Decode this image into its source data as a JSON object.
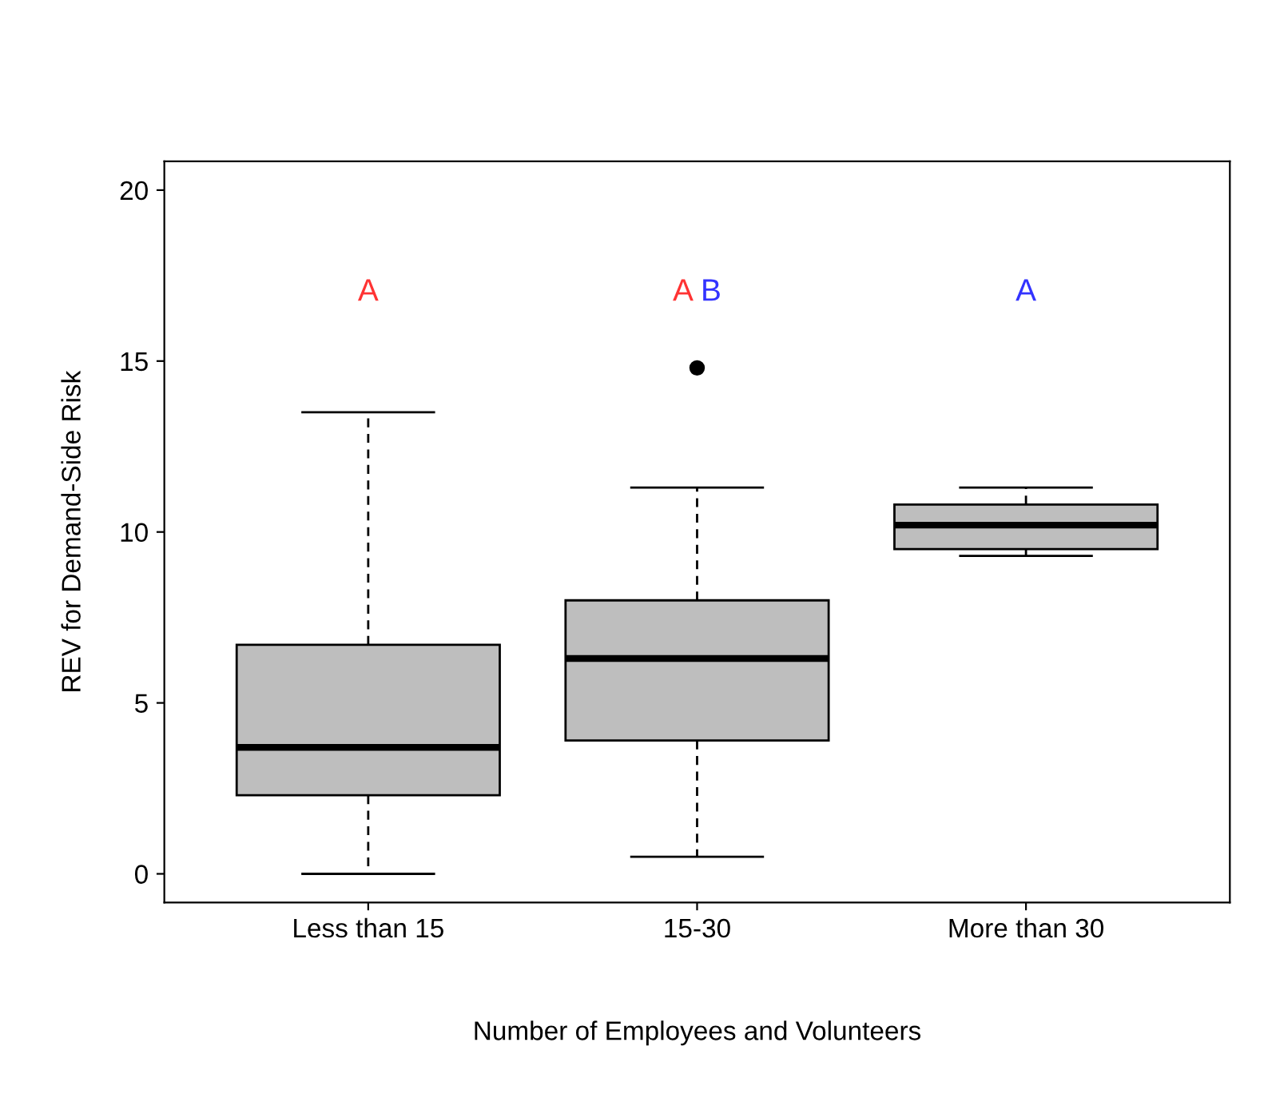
{
  "chart_data": {
    "type": "box",
    "xlabel": "Number of Employees and Volunteers",
    "ylabel": "REV for Demand-Side Risk",
    "categories": [
      "Less than 15",
      "15-30",
      "More than 30"
    ],
    "boxes": [
      {
        "low": 0,
        "q1": 2.3,
        "median": 3.7,
        "q3": 6.7,
        "high": 13.5
      },
      {
        "low": 0.5,
        "q1": 3.9,
        "median": 6.3,
        "q3": 8.0,
        "high": 11.3,
        "outliers": [
          14.8
        ]
      },
      {
        "low": 9.3,
        "q1": 9.5,
        "median": 10.2,
        "q3": 10.8,
        "high": 11.3
      }
    ],
    "color": "#bebebe",
    "ylim": [
      -0.84,
      20.84
    ],
    "yticks": [
      0,
      5,
      10,
      15,
      20
    ],
    "grid": false,
    "annotations": [
      "A",
      "AB",
      "A"
    ]
  }
}
